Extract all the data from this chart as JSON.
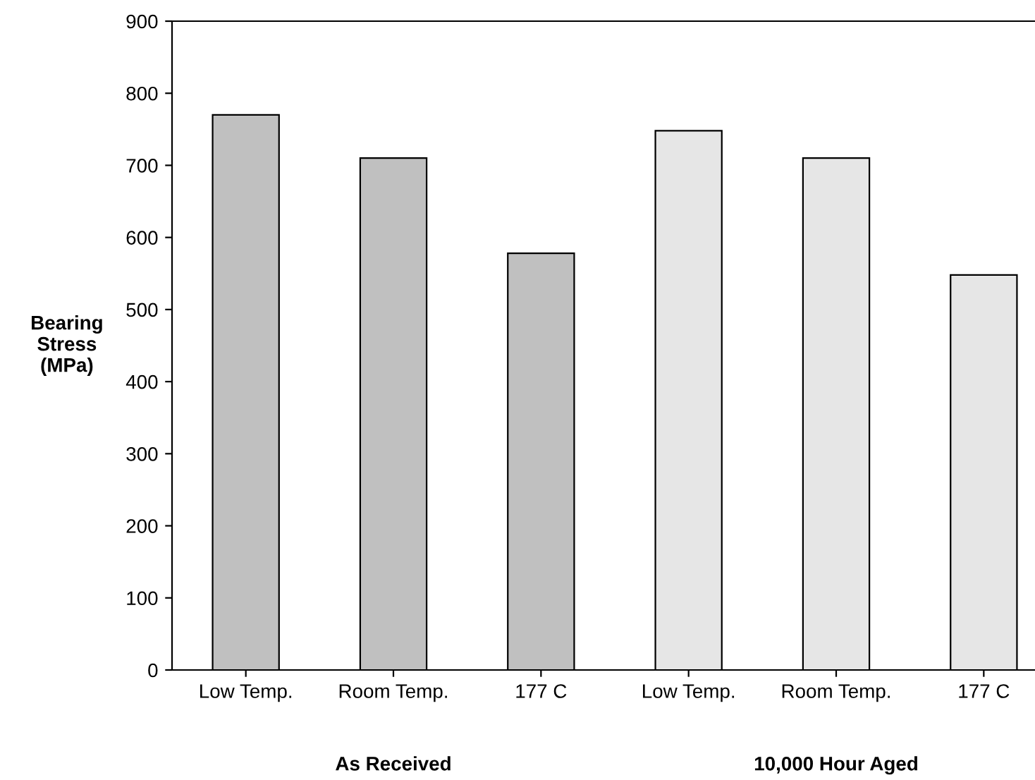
{
  "chart_data": {
    "type": "bar",
    "ylabel": "Bearing\nStress\n(MPa)",
    "categories": [
      "Low Temp.",
      "Room Temp.",
      "177 C",
      "Low Temp.",
      "Room Temp.",
      "177 C"
    ],
    "values": [
      770,
      710,
      578,
      748,
      710,
      548
    ],
    "colors": [
      "#c0c0c0",
      "#c0c0c0",
      "#c0c0c0",
      "#e6e6e6",
      "#e6e6e6",
      "#e6e6e6"
    ],
    "ylim": [
      0,
      900
    ],
    "yticks": [
      0,
      100,
      200,
      300,
      400,
      500,
      600,
      700,
      800,
      900
    ],
    "annotations": [
      "As Received",
      "10,000 Hour Aged"
    ],
    "grid": false,
    "legend": false
  }
}
